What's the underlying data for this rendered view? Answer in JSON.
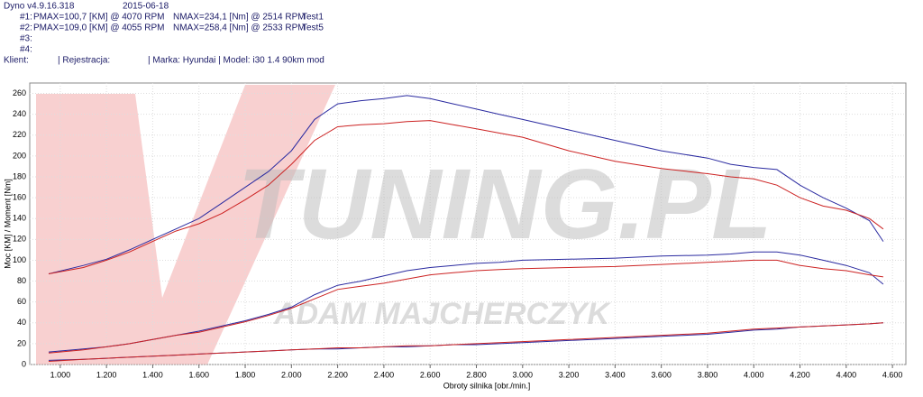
{
  "chart_data": {
    "type": "line",
    "header": {
      "program": "Dyno v4.9.16.318",
      "date": "2015-06-18",
      "runs": [
        {
          "id": "#1:",
          "pmax": "PMAX=100,7 [KM] @ 4070 RPM",
          "nmax": "NMAX=234,1 [Nm] @ 2514 RPM",
          "name": "Test1"
        },
        {
          "id": "#2:",
          "pmax": "PMAX=109,0 [KM] @ 4055 RPM",
          "nmax": "NMAX=258,4 [Nm] @ 2533 RPM",
          "name": "Test5"
        },
        {
          "id": "#3:"
        },
        {
          "id": "#4:"
        }
      ],
      "client": "Klient:",
      "registration": "| Rejestracja:",
      "vehicle": "| Marka: Hyundai | Model: i30 1.4 90km  mod"
    },
    "watermark": [
      "TUNING.PL",
      "ADAM MAJCHERCZYK"
    ],
    "x_label": "Obroty silnika [obr./min.]",
    "y_label": "Moc [KM] / Moment [Nm]",
    "x": [
      950,
      1100,
      1200,
      1300,
      1400,
      1500,
      1600,
      1700,
      1800,
      1900,
      2000,
      2100,
      2200,
      2300,
      2400,
      2500,
      2600,
      2700,
      2800,
      2900,
      3000,
      3200,
      3400,
      3600,
      3800,
      3900,
      4000,
      4100,
      4200,
      4300,
      4400,
      4500,
      4560
    ],
    "series": [
      {
        "color": "#2a2aa0",
        "values": [
          87,
          95,
          101,
          110,
          120,
          130,
          140,
          155,
          170,
          185,
          205,
          235,
          250,
          253,
          255,
          258,
          255,
          250,
          245,
          240,
          235,
          225,
          215,
          205,
          198,
          192,
          189,
          187,
          172,
          160,
          150,
          138,
          118
        ]
      },
      {
        "color": "#cc2222",
        "values": [
          87,
          93,
          100,
          108,
          118,
          128,
          135,
          145,
          158,
          172,
          192,
          215,
          228,
          230,
          231,
          233,
          234,
          230,
          226,
          222,
          218,
          205,
          195,
          188,
          183,
          180,
          178,
          172,
          160,
          152,
          148,
          140,
          130
        ]
      },
      {
        "color": "#2a2aa0",
        "values": [
          12,
          15,
          17,
          20,
          24,
          28,
          32,
          37,
          42,
          48,
          55,
          67,
          76,
          80,
          85,
          90,
          93,
          95,
          97,
          98,
          100,
          101,
          102,
          104,
          105,
          106,
          108,
          108,
          105,
          100,
          95,
          88,
          77
        ]
      },
      {
        "color": "#cc2222",
        "values": [
          11,
          14,
          17,
          20,
          24,
          28,
          31,
          36,
          41,
          47,
          54,
          63,
          72,
          75,
          78,
          82,
          86,
          88,
          90,
          91,
          92,
          93,
          94,
          96,
          98,
          99,
          100,
          100,
          95,
          92,
          90,
          86,
          84
        ]
      },
      {
        "color": "#2a2aa0",
        "values": [
          4,
          5,
          6,
          7,
          8,
          9,
          10,
          11,
          12,
          13,
          14,
          15,
          15,
          16,
          17,
          17,
          18,
          19,
          19,
          20,
          21,
          23,
          25,
          27,
          29,
          31,
          33,
          34,
          36,
          37,
          38,
          39,
          40
        ]
      },
      {
        "color": "#cc2222",
        "values": [
          3,
          5,
          6,
          7,
          8,
          9,
          10,
          11,
          12,
          13,
          14,
          15,
          16,
          16,
          17,
          18,
          18,
          19,
          20,
          21,
          22,
          24,
          26,
          28,
          30,
          32,
          34,
          35,
          36,
          37,
          38,
          39,
          40
        ]
      }
    ],
    "xlim": [
      868,
      4658
    ],
    "ylim": [
      0,
      270
    ],
    "xticks": [
      {
        "value": 1000,
        "label": "1.000"
      },
      {
        "value": 1200,
        "label": "1.200"
      },
      {
        "value": 1400,
        "label": "1.400"
      },
      {
        "value": 1600,
        "label": "1.600"
      },
      {
        "value": 1800,
        "label": "1.800"
      },
      {
        "value": 2000,
        "label": "2.000"
      },
      {
        "value": 2200,
        "label": "2.200"
      },
      {
        "value": 2400,
        "label": "2.400"
      },
      {
        "value": 2600,
        "label": "2.600"
      },
      {
        "value": 2800,
        "label": "2.800"
      },
      {
        "value": 3000,
        "label": "3.000"
      },
      {
        "value": 3200,
        "label": "3.200"
      },
      {
        "value": 3400,
        "label": "3.400"
      },
      {
        "value": 3600,
        "label": "3.600"
      },
      {
        "value": 3800,
        "label": "3.800"
      },
      {
        "value": 4000,
        "label": "4.000"
      },
      {
        "value": 4200,
        "label": "4.200"
      },
      {
        "value": 4400,
        "label": "4.400"
      },
      {
        "value": 4600,
        "label": "4.600"
      }
    ],
    "yticks": [
      0,
      20,
      40,
      60,
      80,
      100,
      120,
      140,
      160,
      180,
      200,
      220,
      240,
      260
    ],
    "grid": true
  }
}
